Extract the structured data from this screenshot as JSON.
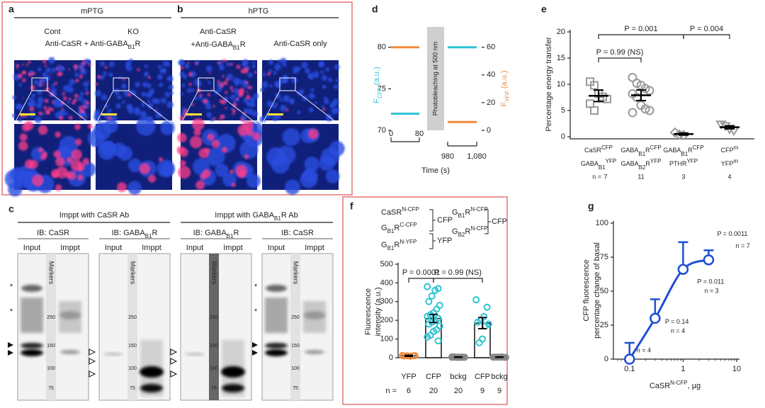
{
  "figure": {
    "a": "a",
    "b": "b",
    "mptg": "mPTG",
    "hptg": "hPTG",
    "cont": "Cont",
    "ko": "KO",
    "a_antibodies": [
      {
        "text": "Anti-CaSR + Anti-GABA"
      },
      {
        "text": "B1",
        "pos": "sub"
      },
      {
        "text": "R"
      }
    ],
    "b_col1": [
      "Anti-CaSR",
      [
        {
          "text": "+Anti-GABA"
        },
        {
          "text": "B1",
          "pos": "sub"
        },
        {
          "text": "R"
        }
      ]
    ],
    "b_col2": "Anti-CaSR only",
    "c": "c",
    "c_left_title": "Imppt with CaSR Ab",
    "c_right_title": [
      {
        "text": "Imppt with GABA"
      },
      {
        "text": "B1",
        "pos": "sub"
      },
      {
        "text": "R Ab"
      }
    ],
    "blots": [
      {
        "ib": "IB: CaSR",
        "lanes": [
          "Input",
          "Imppt"
        ]
      },
      {
        "ib": [
          {
            "text": "IB: GABA"
          },
          {
            "text": "B1",
            "pos": "sub"
          },
          {
            "text": "R"
          }
        ],
        "lanes": [
          "Input",
          "Imppt"
        ]
      },
      {
        "ib": [
          {
            "text": "IB: GABA"
          },
          {
            "text": "B1",
            "pos": "sub"
          },
          {
            "text": "R"
          }
        ],
        "lanes": [
          "Input",
          "Imppt"
        ]
      },
      {
        "ib": "IB: CaSR",
        "lanes": [
          "Input",
          "Imppt"
        ]
      }
    ],
    "markers_label": "Markers",
    "marker_sizes": [
      250,
      150,
      100,
      75
    ],
    "star": "*"
  },
  "chart_data": [
    {
      "panel_label": "d",
      "type": "line",
      "annotation": "Photobleaching at 500 nm",
      "x_label": "Time (s)",
      "y_label": [
        {
          "text": "F"
        },
        {
          "text": "CFP",
          "pos": "sub"
        },
        {
          "text": " (a.u.)"
        }
      ],
      "y2_label": [
        {
          "text": "F"
        },
        {
          "text": "YFP",
          "pos": "sub"
        },
        {
          "text": " (a.u.)"
        }
      ],
      "x": [
        0,
        80,
        980,
        1080
      ],
      "xlim": [
        0,
        1080
      ],
      "x_break": [
        80,
        980
      ],
      "xticks": [
        0,
        80,
        980,
        {
          "value": 1080,
          "label": "1,080"
        }
      ],
      "ylim": [
        70,
        81
      ],
      "yticks": [
        70,
        75,
        80
      ],
      "y2lim": [
        0,
        66
      ],
      "y2ticks": [
        0,
        20,
        40,
        60
      ],
      "series": [
        {
          "color": "#2ec4d2",
          "values": [
            72,
            72,
            80,
            80
          ]
        },
        {
          "color": "#f28a3a",
          "axis": "y2",
          "values": [
            60,
            60,
            6,
            6
          ]
        }
      ]
    },
    {
      "panel_label": "e",
      "type": "dotplot",
      "y_label": "Percentage energy transfer",
      "ylim": [
        0,
        20
      ],
      "yticks": [
        0,
        5,
        10,
        15,
        20
      ],
      "categories": [
        [
          [
            {
              "text": "CaSR"
            },
            {
              "text": "CFP",
              "pos": "sup"
            }
          ],
          [
            {
              "text": "GABA"
            },
            {
              "text": "B1",
              "pos": "sub"
            },
            {
              "text": "YFP",
              "pos": "sup"
            }
          ]
        ],
        [
          [
            {
              "text": "GABA"
            },
            {
              "text": "B1",
              "pos": "sub"
            },
            {
              "text": "R"
            },
            {
              "text": "CFP",
              "pos": "sup"
            }
          ],
          [
            {
              "text": "GABA"
            },
            {
              "text": "B2",
              "pos": "sub"
            },
            {
              "text": "R"
            },
            {
              "text": "YFP",
              "pos": "sup"
            }
          ]
        ],
        [
          [
            {
              "text": "GABA"
            },
            {
              "text": "B1",
              "pos": "sub"
            },
            {
              "text": "R"
            },
            {
              "text": "CFP",
              "pos": "sup"
            }
          ],
          [
            {
              "text": "PTHR"
            },
            {
              "text": "YFP",
              "pos": "sup"
            }
          ]
        ],
        [
          [
            {
              "text": "CFP"
            },
            {
              "text": "m",
              "pos": "sup"
            }
          ],
          [
            {
              "text": "YFP"
            },
            {
              "text": "m",
              "pos": "sup"
            }
          ]
        ]
      ],
      "n_prefix": "n =",
      "n": [
        7,
        11,
        3,
        4
      ],
      "values": [
        7.8,
        7.9,
        0.5,
        1.8
      ],
      "errors": [
        1.1,
        1.0,
        0.2,
        0.3
      ],
      "points": [
        [
          10.5,
          9.8,
          8.2,
          7.6,
          7.2,
          6.3,
          5.0
        ],
        [
          11.3,
          10.2,
          9.8,
          9.2,
          8.8,
          8.2,
          7.5,
          6.0,
          5.3,
          5.0,
          4.6
        ],
        [
          0.8,
          0.4,
          0.3
        ],
        [
          2.4,
          2.1,
          1.5,
          1.2
        ]
      ],
      "markers": [
        "square",
        "circle",
        "diamond",
        "triangle"
      ],
      "color": "#9a9a9a",
      "comparisons": [
        {
          "groups": [
            0,
            2
          ],
          "label": "P = 0.001"
        },
        {
          "groups": [
            2,
            3
          ],
          "label": "P = 0.004"
        },
        {
          "groups": [
            0,
            1
          ],
          "label": "P = 0.99 (NS)"
        }
      ]
    },
    {
      "panel_label": "f",
      "type": "bar",
      "key": {
        "left": [
          [
            {
              "text": "CaSR"
            },
            {
              "text": "N-CFP",
              "pos": "sup"
            }
          ],
          [
            {
              "text": "G"
            },
            {
              "text": "B1",
              "pos": "sub"
            },
            {
              "text": "R"
            },
            {
              "text": "C-CFP",
              "pos": "sup"
            }
          ],
          [
            {
              "text": "G"
            },
            {
              "text": "B1",
              "pos": "sub"
            },
            {
              "text": "R"
            },
            {
              "text": "N-YFP",
              "pos": "sup"
            }
          ]
        ],
        "left_groups": [
          "CFP",
          "YFP"
        ],
        "right": [
          [
            {
              "text": "G"
            },
            {
              "text": "B1",
              "pos": "sub"
            },
            {
              "text": "R"
            },
            {
              "text": "N-CFP",
              "pos": "sup"
            }
          ],
          [
            {
              "text": "G"
            },
            {
              "text": "B2",
              "pos": "sub"
            },
            {
              "text": "R"
            },
            {
              "text": "N-CFP",
              "pos": "sup"
            }
          ]
        ],
        "right_group": "CFP"
      },
      "y_label": [
        "Fluorescence",
        "intensity (a.u.)"
      ],
      "ylim": [
        0,
        500
      ],
      "yticks": [
        0,
        100,
        200,
        300,
        400,
        500
      ],
      "categories": [
        "YFP",
        "CFP",
        "bckg",
        "CFP",
        "bckg"
      ],
      "values": [
        10,
        210,
        3,
        185,
        3
      ],
      "errors": [
        3,
        22,
        1,
        30,
        1
      ],
      "colors": [
        "#f28a3a",
        "#2ec4d2",
        "#888888",
        "#2ec4d2",
        "#888888"
      ],
      "points": [
        [
          12,
          10,
          8,
          10,
          9,
          11
        ],
        [
          380,
          370,
          360,
          330,
          300,
          280,
          260,
          240,
          230,
          220,
          210,
          200,
          190,
          180,
          170,
          150,
          140,
          120,
          110,
          90
        ],
        [
          4,
          3,
          2,
          3,
          4,
          2,
          3,
          3,
          4,
          2,
          3,
          3,
          2,
          4,
          3,
          3,
          2,
          3,
          4,
          3
        ],
        [
          310,
          270,
          220,
          200,
          190,
          180,
          170,
          100,
          80
        ],
        [
          3,
          2,
          4,
          3,
          3,
          2,
          4,
          3,
          3
        ]
      ],
      "n_prefix": "n =",
      "n": [
        6,
        20,
        20,
        9,
        9
      ],
      "comparisons": [
        {
          "groups": [
            0,
            1
          ],
          "label": "P = 0.0001"
        },
        {
          "groups": [
            1,
            3
          ],
          "label": "P = 0.99 (NS)"
        }
      ]
    },
    {
      "panel_label": "g",
      "type": "scatter",
      "x_label": [
        {
          "text": "CaSR"
        },
        {
          "text": "N-CFP",
          "pos": "sup"
        },
        {
          "text": ", µg"
        }
      ],
      "y_label": [
        "CFP fluorescence",
        "percentage change of basal"
      ],
      "xscale": "log",
      "xlim": [
        0.05,
        10
      ],
      "xticks": [
        0.1,
        1,
        10
      ],
      "ylim": [
        0,
        100
      ],
      "yticks": [
        0,
        25,
        50,
        75,
        100
      ],
      "x": [
        0.1,
        0.3,
        1,
        3
      ],
      "values": [
        0,
        30,
        66,
        73
      ],
      "errors": [
        12,
        14,
        20,
        7
      ],
      "color": "#1f4fd6",
      "annotations": [
        [
          "n = 4"
        ],
        [
          "P = 0.14",
          "n = 4"
        ],
        [
          "P = 0.011",
          "n = 3"
        ],
        [
          "P = 0.0011",
          "n = 7"
        ]
      ]
    }
  ]
}
